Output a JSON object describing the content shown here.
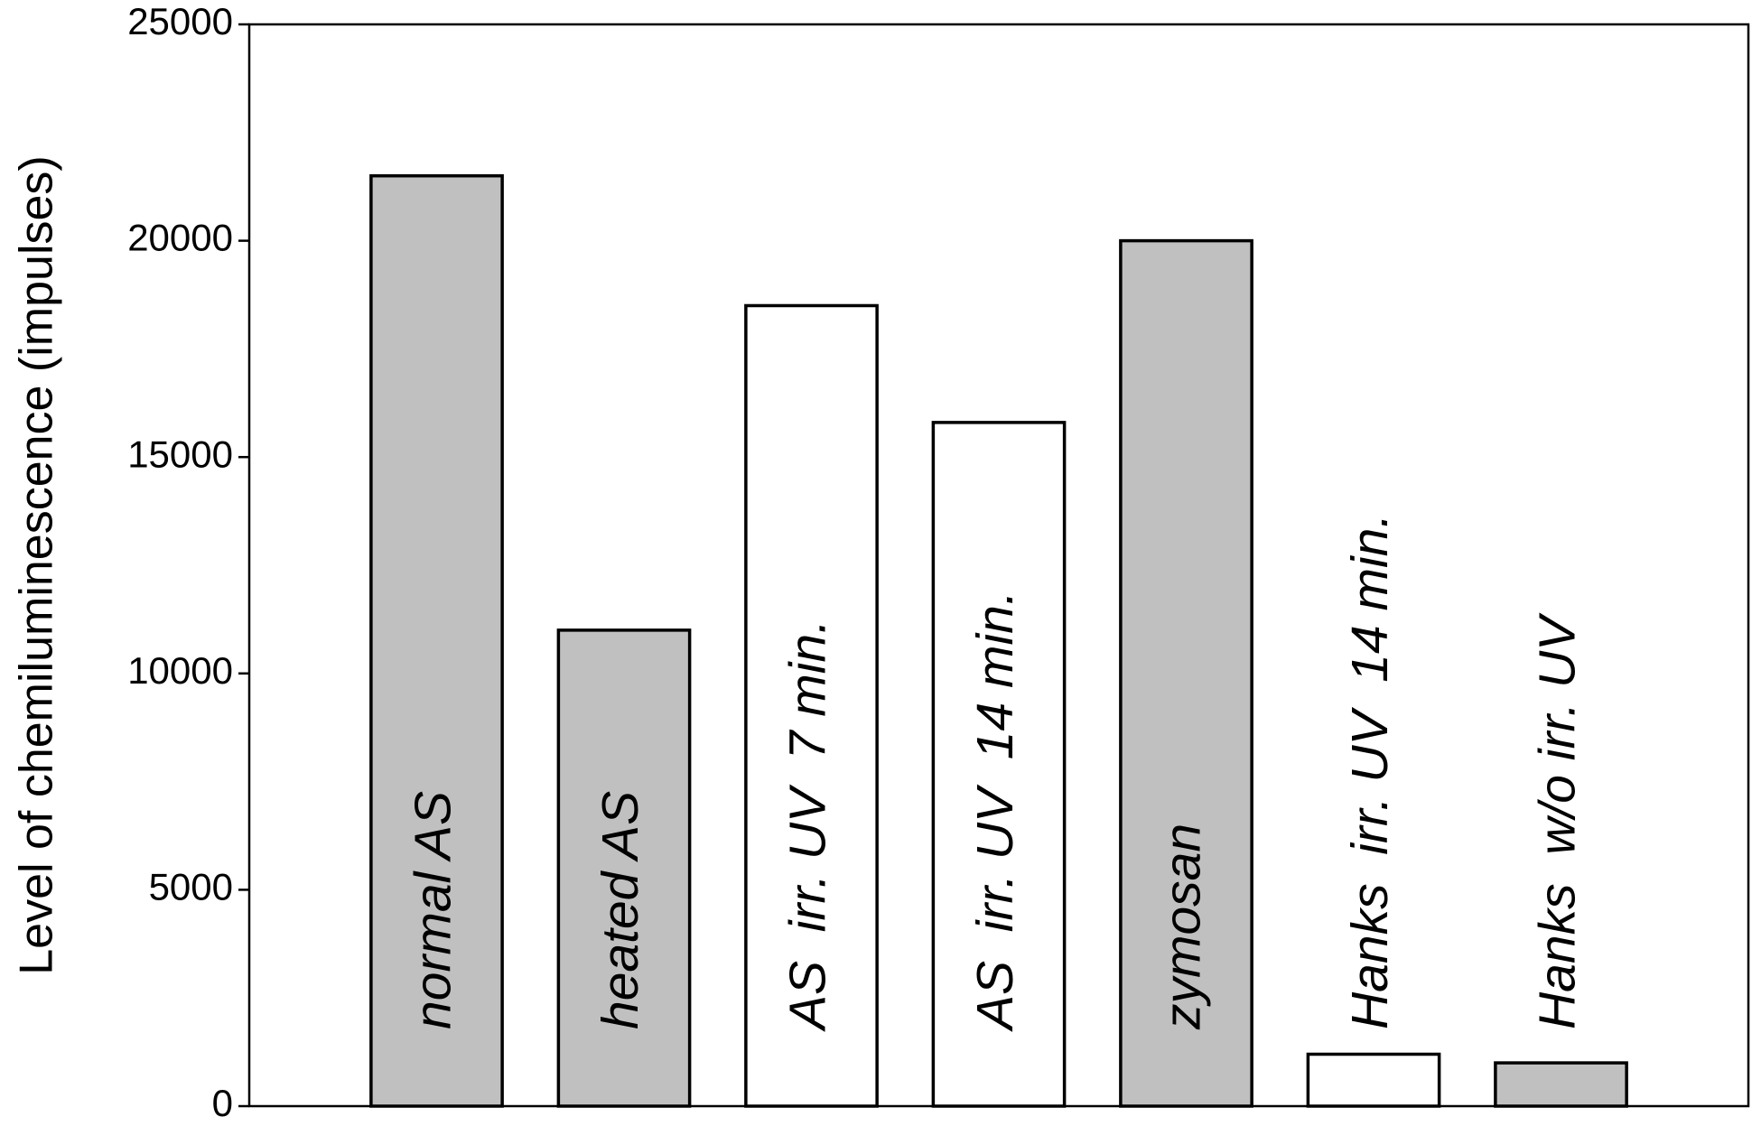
{
  "chart_data": {
    "type": "bar",
    "y_label": "Level of chemiluminescence (impulses)",
    "categories": [
      "normal AS",
      "heated AS",
      "AS  irr. UV  7 min.",
      "AS  irr. UV  14 min.",
      "zymosan",
      "Hanks  irr. UV  14 min.",
      "Hanks  w/o irr. UV"
    ],
    "values": [
      21500,
      11000,
      18500,
      15800,
      20000,
      1200,
      1000
    ],
    "colors": [
      "#c0c0c0",
      "#c0c0c0",
      "#ffffff",
      "#ffffff",
      "#c0c0c0",
      "#ffffff",
      "#c0c0c0"
    ],
    "ylim": [
      0,
      25000
    ],
    "yticks": [
      0,
      5000,
      10000,
      15000,
      20000,
      25000
    ],
    "grid": false
  }
}
